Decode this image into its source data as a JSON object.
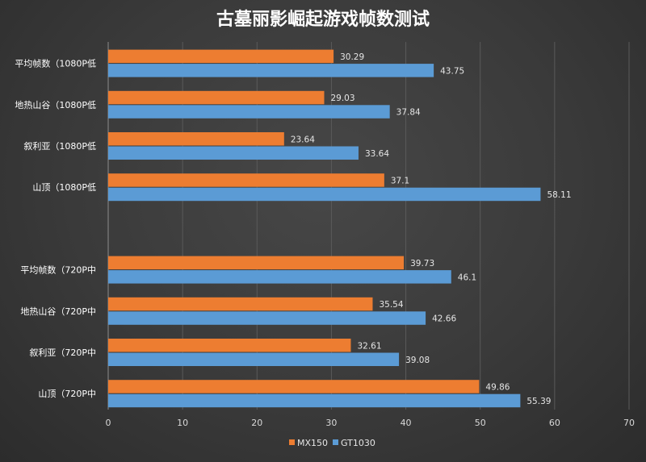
{
  "chart_data": {
    "type": "bar",
    "orientation": "horizontal",
    "title": "古墓丽影崛起游戏帧数测试",
    "groups": [
      {
        "categories": [
          "平均帧数（1080P低",
          "地热山谷（1080P低",
          "叙利亚（1080P低",
          "山顶（1080P低"
        ]
      },
      {
        "categories": [
          "平均帧数（720P中",
          "地热山谷（720P中",
          "叙利亚（720P中",
          "山顶（720P中"
        ]
      }
    ],
    "series": [
      {
        "name": "MX150",
        "color": "#ed7d31",
        "values": [
          30.29,
          29.03,
          23.64,
          37.1,
          39.73,
          35.54,
          32.61,
          49.86
        ]
      },
      {
        "name": "GT1030",
        "color": "#5b9bd5",
        "values": [
          43.75,
          37.84,
          33.64,
          58.11,
          46.1,
          42.66,
          39.08,
          55.39
        ]
      }
    ],
    "xlim": [
      0,
      70
    ],
    "xticks": [
      0,
      10,
      20,
      30,
      40,
      50,
      60,
      70
    ],
    "grid": true,
    "legend_position": "bottom"
  }
}
